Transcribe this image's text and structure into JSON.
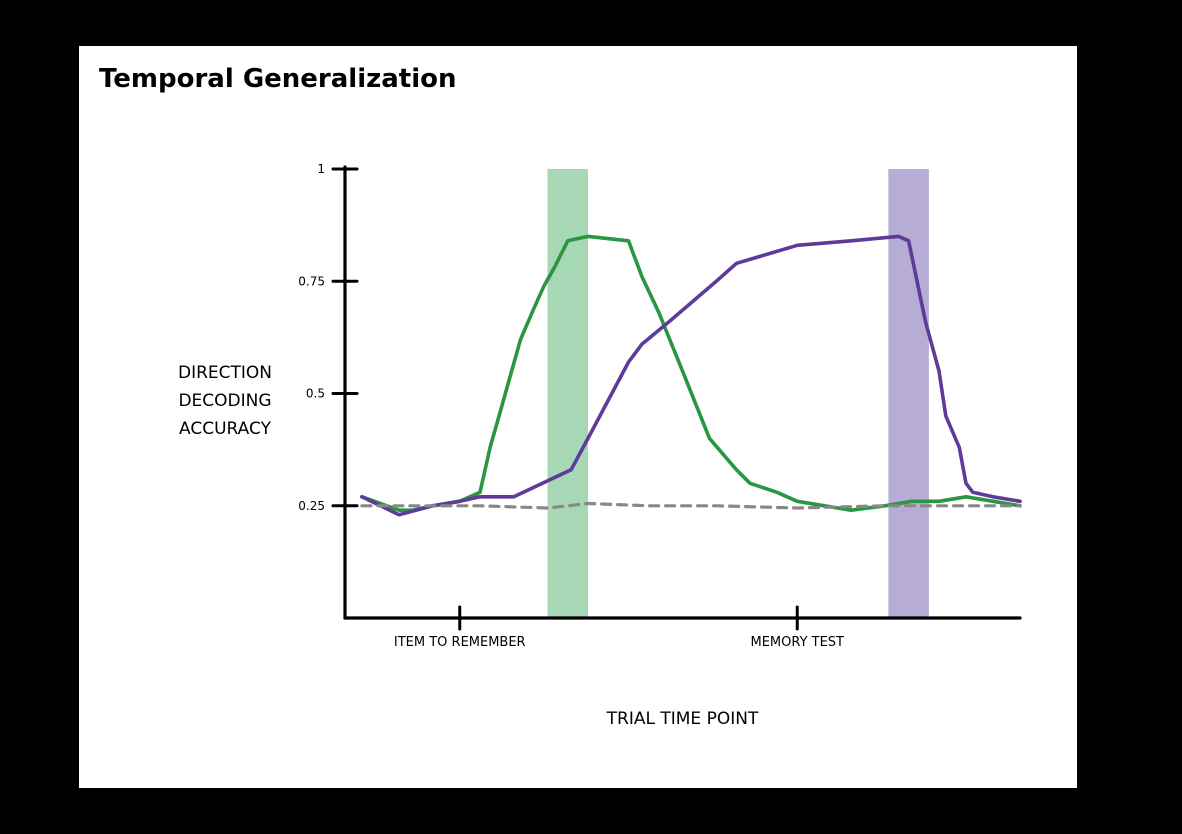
{
  "chart_data": {
    "type": "line",
    "title": "Temporal Generalization",
    "xlabel": "TRIAL TIME POINT",
    "ylabel_lines": [
      "DIRECTION",
      "DECODING",
      "ACCURACY"
    ],
    "ylim": [
      0,
      1
    ],
    "xlim": [
      0,
      100
    ],
    "yticks": [
      {
        "value": 1,
        "label": "1"
      },
      {
        "value": 0.75,
        "label": "0.75"
      },
      {
        "value": 0.5,
        "label": "0.5"
      },
      {
        "value": 0.25,
        "label": "0.25"
      }
    ],
    "x_markers": [
      {
        "x": 17,
        "label": "ITEM TO REMEMBER"
      },
      {
        "x": 67,
        "label": "MEMORY TEST"
      }
    ],
    "highlight_bands": [
      {
        "x0": 30,
        "x1": 36,
        "color": "#a6d8b5"
      },
      {
        "x0": 80.5,
        "x1": 86.5,
        "color": "#b7acd6"
      }
    ],
    "series": [
      {
        "color": "#2a9640",
        "dashed": false,
        "x": [
          2.5,
          8,
          10,
          13,
          17,
          20,
          21.5,
          23,
          24.5,
          26,
          28,
          29.5,
          31,
          33,
          36,
          42,
          44,
          46.5,
          50,
          54,
          58,
          60,
          64,
          67,
          71,
          75,
          80,
          84,
          88,
          92,
          96,
          100
        ],
        "y": [
          0.27,
          0.24,
          0.24,
          0.25,
          0.26,
          0.28,
          0.38,
          0.46,
          0.54,
          0.62,
          0.69,
          0.74,
          0.78,
          0.84,
          0.85,
          0.84,
          0.76,
          0.68,
          0.55,
          0.4,
          0.33,
          0.3,
          0.28,
          0.26,
          0.25,
          0.24,
          0.25,
          0.26,
          0.26,
          0.27,
          0.26,
          0.25
        ]
      },
      {
        "color": "#5e3a99",
        "dashed": false,
        "x": [
          2.5,
          8,
          13,
          17,
          20,
          25,
          33.5,
          36,
          42,
          44,
          48,
          55,
          58,
          67,
          75,
          82,
          83.5,
          86,
          88,
          89,
          91,
          92,
          93,
          96,
          100
        ],
        "y": [
          0.27,
          0.23,
          0.25,
          0.26,
          0.27,
          0.27,
          0.33,
          0.4,
          0.57,
          0.61,
          0.66,
          0.75,
          0.79,
          0.83,
          0.84,
          0.85,
          0.84,
          0.66,
          0.55,
          0.45,
          0.38,
          0.3,
          0.28,
          0.27,
          0.26
        ]
      },
      {
        "color": "#888888",
        "dashed": true,
        "x": [
          2.5,
          10,
          20,
          30,
          36,
          45,
          55,
          67,
          80,
          90,
          100
        ],
        "y": [
          0.25,
          0.25,
          0.25,
          0.245,
          0.255,
          0.25,
          0.25,
          0.245,
          0.25,
          0.25,
          0.25
        ]
      }
    ]
  }
}
